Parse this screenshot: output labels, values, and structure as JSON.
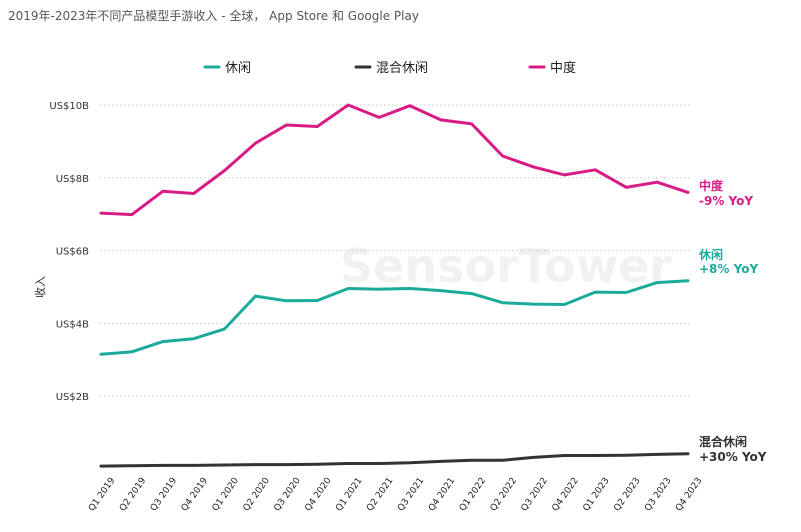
{
  "watermark": "SensorTower",
  "chart_data": {
    "type": "line",
    "title": "2019年-2023年不同产品模型手游收入 - 全球， App Store 和 Google Play",
    "ylabel": "收入",
    "xlabel": "",
    "ylim": [
      0,
      10
    ],
    "yticks": [
      {
        "value": 2,
        "label": "US$2B"
      },
      {
        "value": 4,
        "label": "US$4B"
      },
      {
        "value": 6,
        "label": "US$6B"
      },
      {
        "value": 8,
        "label": "US$8B"
      },
      {
        "value": 10,
        "label": "US$10B"
      }
    ],
    "grid": true,
    "legend_position": "top",
    "categories": [
      "Q1 2019",
      "Q2 2019",
      "Q3 2019",
      "Q4 2019",
      "Q1 2020",
      "Q2 2020",
      "Q3 2020",
      "Q4 2020",
      "Q1 2021",
      "Q2 2021",
      "Q3 2021",
      "Q4 2021",
      "Q1 2022",
      "Q2 2022",
      "Q3 2022",
      "Q4 2022",
      "Q1 2023",
      "Q2 2023",
      "Q3 2023",
      "Q4 2023"
    ],
    "series": [
      {
        "name": "休闲",
        "color": "#1aab9b",
        "values": [
          3.15,
          3.22,
          3.5,
          3.58,
          3.85,
          4.75,
          4.62,
          4.63,
          4.96,
          4.94,
          4.96,
          4.9,
          4.82,
          4.57,
          4.53,
          4.52,
          4.86,
          4.85,
          5.12,
          5.17
        ],
        "end_label": {
          "name": "休闲",
          "yoy": "+8% YoY"
        }
      },
      {
        "name": "混合休闲",
        "color": "#333333",
        "values": [
          0.08,
          0.09,
          0.1,
          0.1,
          0.11,
          0.12,
          0.12,
          0.13,
          0.15,
          0.15,
          0.17,
          0.21,
          0.24,
          0.24,
          0.32,
          0.37,
          0.37,
          0.38,
          0.4,
          0.42
        ],
        "end_label": {
          "name": "混合休闲",
          "yoy": "+30% YoY"
        }
      },
      {
        "name": "中度",
        "color": "#d81b85",
        "values": [
          7.03,
          6.99,
          7.63,
          7.57,
          8.2,
          8.95,
          9.45,
          9.41,
          10.0,
          9.66,
          9.98,
          9.59,
          9.48,
          8.6,
          8.3,
          8.08,
          8.22,
          7.74,
          7.88,
          7.6
        ],
        "end_label": {
          "name": "中度",
          "yoy": "-9% YoY"
        }
      }
    ]
  }
}
